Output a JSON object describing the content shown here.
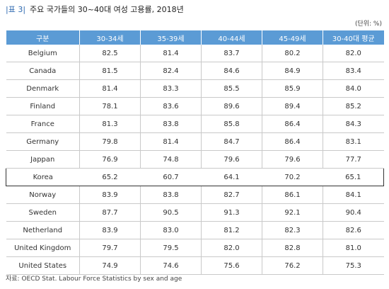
{
  "title": {
    "tag": "|표 3|",
    "text": "주요 국가들의 30~40대 여성 고용률, 2018년"
  },
  "unit": "(단위: %)",
  "headers": [
    "구분",
    "30-34세",
    "35-39세",
    "40-44세",
    "45-49세",
    "30-40대 평균"
  ],
  "rows": [
    [
      "Belgium",
      "82.5",
      "81.4",
      "83.7",
      "80.2",
      "82.0"
    ],
    [
      "Canada",
      "81.5",
      "82.4",
      "84.6",
      "84.9",
      "83.4"
    ],
    [
      "Denmark",
      "81.4",
      "83.3",
      "85.5",
      "85.9",
      "84.0"
    ],
    [
      "Finland",
      "78.1",
      "83.6",
      "89.6",
      "89.4",
      "85.2"
    ],
    [
      "France",
      "81.3",
      "83.8",
      "85.8",
      "86.4",
      "84.3"
    ],
    [
      "Germany",
      "79.8",
      "81.4",
      "84.7",
      "86.4",
      "83.1"
    ],
    [
      "Jappan",
      "76.9",
      "74.8",
      "79.6",
      "79.6",
      "77.7"
    ],
    [
      "Korea",
      "65.2",
      "60.7",
      "64.1",
      "70.2",
      "65.1"
    ],
    [
      "Norway",
      "83.9",
      "83.8",
      "82.7",
      "86.1",
      "84.1"
    ],
    [
      "Sweden",
      "87.7",
      "90.5",
      "91.3",
      "92.1",
      "90.4"
    ],
    [
      "Netherland",
      "83.9",
      "83.0",
      "81.2",
      "82.3",
      "82.6"
    ],
    [
      "United Kingdom",
      "79.7",
      "79.5",
      "82.0",
      "82.8",
      "81.0"
    ],
    [
      "United States",
      "74.9",
      "74.6",
      "75.6",
      "76.2",
      "75.3"
    ]
  ],
  "highlight_row": "Korea",
  "source": "자료: OECD Stat. Labour Force Statistics by sex and age",
  "colors": {
    "header_bg": "#5b9bd5",
    "header_text": "#ffffff",
    "title_tag": "#2e69b0",
    "grid_line": "#c9c9c9",
    "highlight_border": "#333333"
  }
}
